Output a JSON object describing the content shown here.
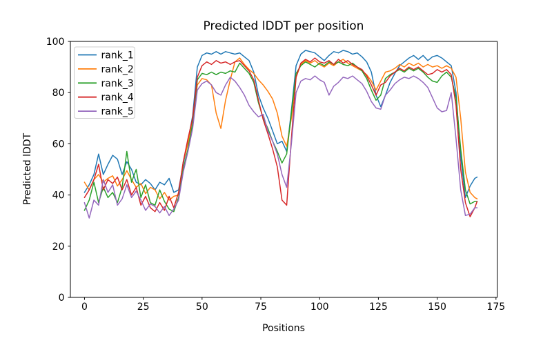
{
  "figure": {
    "background_color": "#ffffff",
    "text_color": "#000000",
    "spine_color": "#000000",
    "legend_border_color": "#cccccc"
  },
  "chart_data": {
    "type": "line",
    "title": "Predicted lDDT per position",
    "xlabel": "Positions",
    "ylabel": "Predicted lDDT",
    "xlim": [
      -6,
      175.5
    ],
    "ylim": [
      0,
      100
    ],
    "x_ticks": [
      0,
      25,
      50,
      75,
      100,
      125,
      150,
      175
    ],
    "y_ticks": [
      0,
      20,
      40,
      60,
      80,
      100
    ],
    "grid": false,
    "legend_position": "upper left",
    "x": [
      0,
      2,
      4,
      6,
      8,
      10,
      12,
      14,
      16,
      18,
      20,
      22,
      24,
      26,
      28,
      30,
      32,
      34,
      36,
      38,
      40,
      42,
      44,
      46,
      48,
      50,
      52,
      54,
      56,
      58,
      60,
      62,
      64,
      66,
      68,
      70,
      72,
      74,
      76,
      78,
      80,
      82,
      84,
      86,
      88,
      90,
      92,
      94,
      96,
      98,
      100,
      102,
      104,
      106,
      108,
      110,
      112,
      114,
      116,
      118,
      120,
      122,
      124,
      126,
      128,
      130,
      132,
      134,
      136,
      138,
      140,
      142,
      144,
      146,
      148,
      150,
      152,
      154,
      156,
      158,
      160,
      162,
      164,
      166,
      167
    ],
    "series": [
      {
        "name": "rank_1",
        "color": "#1f77b4",
        "values": [
          41,
          44,
          48,
          56,
          48,
          52,
          55.5,
          54,
          48,
          53,
          50,
          45,
          44,
          46,
          44.5,
          42,
          45,
          44,
          46.5,
          41,
          42,
          52,
          61,
          71,
          90,
          94.5,
          95.5,
          95,
          96,
          95,
          96,
          95.5,
          95,
          95.5,
          94,
          92.5,
          88,
          79,
          74,
          70,
          65,
          60,
          61,
          57,
          73,
          90.5,
          95,
          96.5,
          96,
          95.5,
          94,
          92.5,
          94.5,
          96,
          95.5,
          96.5,
          96,
          95,
          95.5,
          94,
          92,
          88,
          79,
          74.5,
          79,
          84,
          87.5,
          90.5,
          92,
          93.5,
          94.5,
          93,
          94.5,
          92.5,
          94,
          94.5,
          93.5,
          92,
          90.5,
          80,
          55,
          39,
          43.5,
          46.5,
          47
        ]
      },
      {
        "name": "rank_2",
        "color": "#ff7f0e",
        "values": [
          45,
          42,
          46,
          48,
          45,
          46.5,
          47.5,
          43.5,
          46,
          49.5,
          46,
          43,
          44.5,
          40.5,
          43,
          42,
          38.5,
          41,
          38,
          39.5,
          40,
          53,
          60,
          70,
          83,
          85.5,
          85,
          83,
          72,
          66,
          77,
          85,
          92,
          93.5,
          91,
          89,
          87.5,
          85,
          83,
          80.5,
          77.5,
          72,
          63,
          59,
          70,
          86,
          91,
          92.5,
          91.5,
          92.5,
          91,
          90,
          91.5,
          90.5,
          92,
          93,
          91.5,
          90.5,
          89.5,
          88.5,
          87,
          84.5,
          81,
          84.5,
          88,
          88.5,
          89.5,
          91,
          90,
          91.5,
          90.5,
          91.5,
          90,
          91,
          90,
          90.5,
          89.5,
          90.5,
          89.5,
          86,
          70,
          49,
          41,
          39,
          38.5
        ]
      },
      {
        "name": "rank_3",
        "color": "#2ca02c",
        "values": [
          34,
          38,
          45,
          37,
          43,
          39,
          41,
          37,
          43,
          57,
          45,
          50,
          39,
          44,
          37,
          36,
          42,
          37.5,
          34.5,
          33.5,
          39,
          50,
          58,
          68,
          85,
          87.5,
          87,
          88,
          87,
          88,
          87.5,
          88.5,
          88,
          91.5,
          89.5,
          87.5,
          84,
          76,
          70,
          66,
          61,
          57,
          52.5,
          56,
          72,
          87.5,
          90.5,
          92,
          91,
          90,
          91.5,
          90.5,
          92,
          91,
          92,
          91,
          90.5,
          91.5,
          90,
          88.5,
          85.5,
          81,
          77,
          79,
          85.5,
          87,
          88,
          89,
          88,
          89.5,
          88.5,
          89.5,
          88,
          86,
          84.5,
          84,
          86.5,
          88,
          86,
          78,
          58,
          42,
          36.5,
          37.5,
          37.5
        ]
      },
      {
        "name": "rank_4",
        "color": "#d62728",
        "values": [
          39,
          42,
          46,
          52,
          42,
          46,
          44.5,
          47,
          42,
          46,
          40,
          43,
          36,
          39.5,
          35,
          33.5,
          37,
          34,
          39.5,
          35,
          41,
          53,
          62,
          70,
          86,
          90.5,
          92,
          91,
          92.5,
          91.5,
          92,
          91,
          92,
          92.5,
          90.5,
          88.5,
          85,
          77,
          69.5,
          64,
          58,
          51,
          38,
          36,
          62,
          86,
          91.5,
          93,
          92,
          93.5,
          92,
          91.5,
          92.5,
          91,
          93,
          91.5,
          92.5,
          91,
          90,
          89,
          86.5,
          83,
          79,
          83,
          84,
          86.5,
          88,
          89.5,
          88.5,
          90,
          89,
          90,
          88.5,
          87,
          87.5,
          89,
          88,
          89,
          87,
          75,
          50,
          37,
          31.5,
          35,
          37.5
        ]
      },
      {
        "name": "rank_5",
        "color": "#9467bd",
        "values": [
          37,
          31,
          38,
          36,
          46,
          41,
          44,
          36,
          38.5,
          44,
          39,
          41.5,
          38,
          34,
          36.5,
          35.5,
          33,
          35.5,
          32,
          34.5,
          38,
          49,
          57,
          66,
          81,
          83.5,
          84.5,
          83,
          80,
          79,
          83,
          86,
          84.5,
          82,
          79,
          75,
          72.5,
          70.5,
          71.5,
          65,
          61,
          56,
          48,
          43,
          60,
          80,
          84.5,
          85.5,
          85,
          86.5,
          85,
          84,
          79,
          82.5,
          84,
          86,
          85.5,
          86.5,
          85,
          83.5,
          80.5,
          76.5,
          74,
          73.5,
          79,
          81,
          83.5,
          85,
          86,
          85.5,
          86.5,
          85.5,
          84,
          82,
          78,
          74,
          72.5,
          73,
          80,
          62,
          42,
          32,
          32.5,
          35,
          35
        ]
      }
    ]
  }
}
